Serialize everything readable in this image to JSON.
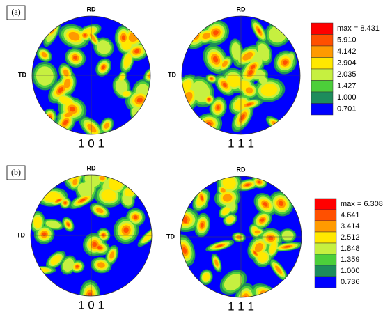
{
  "panels": [
    {
      "label": "(a)",
      "legend": {
        "max": "max = 8.431",
        "levels": [
          "5.910",
          "4.142",
          "2.904",
          "2.035",
          "1.427",
          "1.000",
          "0.701"
        ]
      },
      "figures": [
        {
          "top": "RD",
          "left": "TD",
          "caption": "1 0 1"
        },
        {
          "top": "RD",
          "left": "TD",
          "caption": "1 1 1"
        }
      ]
    },
    {
      "label": "(b)",
      "legend": {
        "max": "max = 6.308",
        "levels": [
          "4.641",
          "3.414",
          "2.512",
          "1.848",
          "1.359",
          "1.000",
          "0.736"
        ]
      },
      "figures": [
        {
          "top": "RD",
          "left": "TD",
          "caption": "1 0 1"
        },
        {
          "top": "RD",
          "left": "TD",
          "caption": "1 1 1"
        }
      ]
    }
  ]
}
